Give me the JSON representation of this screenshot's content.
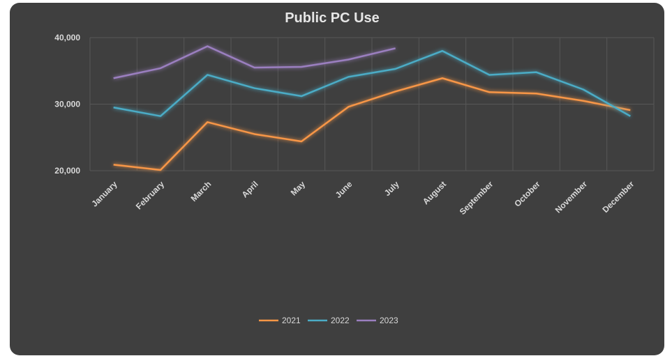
{
  "chart_data": {
    "type": "line",
    "title": "Public PC Use",
    "categories": [
      "January",
      "February",
      "March",
      "April",
      "May",
      "June",
      "July",
      "August",
      "September",
      "October",
      "November",
      "December"
    ],
    "series": [
      {
        "name": "2021",
        "color": "#f79646",
        "values": [
          20900,
          20100,
          27300,
          25500,
          24400,
          29600,
          31900,
          33900,
          31800,
          31600,
          30500,
          29100
        ]
      },
      {
        "name": "2022",
        "color": "#4bacc6",
        "values": [
          29500,
          28200,
          34400,
          32400,
          31200,
          34100,
          35300,
          38000,
          34400,
          34800,
          32200,
          28200
        ]
      },
      {
        "name": "2023",
        "color": "#9b7fc0",
        "values": [
          33900,
          35400,
          38700,
          35500,
          35600,
          36700,
          38400,
          null,
          null,
          null,
          null,
          null
        ]
      }
    ],
    "ylim": [
      20000,
      40000
    ],
    "yticks": [
      {
        "value": 20000,
        "label": "20,000"
      },
      {
        "value": 30000,
        "label": "30,000"
      },
      {
        "value": 40000,
        "label": "40,000"
      }
    ],
    "grid": true,
    "legend": "bottom"
  }
}
